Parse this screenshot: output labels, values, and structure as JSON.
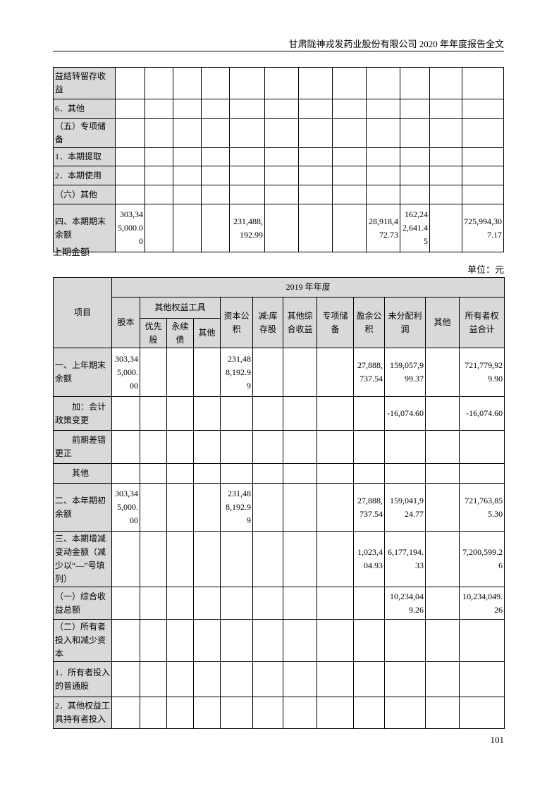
{
  "header": {
    "title": "甘肃陇神戎发药业股份有限公司 2020 年年度报告全文"
  },
  "table1": {
    "rows": [
      {
        "label": "益结转留存收益",
        "values": [
          "",
          "",
          "",
          "",
          "",
          "",
          "",
          "",
          "",
          "",
          "",
          ""
        ]
      },
      {
        "label": "6．其他",
        "values": [
          "",
          "",
          "",
          "",
          "",
          "",
          "",
          "",
          "",
          "",
          "",
          ""
        ]
      },
      {
        "label": "（五）专项储备",
        "values": [
          "",
          "",
          "",
          "",
          "",
          "",
          "",
          "",
          "",
          "",
          "",
          ""
        ]
      },
      {
        "label": "1．本期提取",
        "values": [
          "",
          "",
          "",
          "",
          "",
          "",
          "",
          "",
          "",
          "",
          "",
          ""
        ]
      },
      {
        "label": "2．本期使用",
        "values": [
          "",
          "",
          "",
          "",
          "",
          "",
          "",
          "",
          "",
          "",
          "",
          ""
        ]
      },
      {
        "label": "（六）其他",
        "values": [
          "",
          "",
          "",
          "",
          "",
          "",
          "",
          "",
          "",
          "",
          "",
          ""
        ]
      },
      {
        "label": "四、本期期末余额",
        "values": [
          "303,345,000.00",
          "",
          "",
          "",
          "231,488,192.99",
          "",
          "",
          "",
          "28,918,472.73",
          "162,242,641.45",
          "",
          "725,994,307.17"
        ]
      }
    ]
  },
  "section_label": "上期金额",
  "unit_label": "单位：元",
  "table2": {
    "header": {
      "item": "项目",
      "year": "2019 年年度",
      "share_capital": "股本",
      "other_equity": "其他权益工具",
      "preferred": "优先股",
      "perpetual": "永续债",
      "other_eq_other": "其他",
      "capital_reserve": "资本公积",
      "treasury": "减:库存股",
      "oci": "其他综合收益",
      "special_reserve": "专项储备",
      "surplus_reserve": "盈余公积",
      "undistributed": "未分配利润",
      "other": "其他",
      "total": "所有者权益合计"
    },
    "rows": [
      {
        "label": "一、上年期末余额",
        "values": [
          "303,345,000.00",
          "",
          "",
          "",
          "231,488,192.99",
          "",
          "",
          "",
          "27,888,737.54",
          "159,057,999.37",
          "",
          "721,779,929.90"
        ]
      },
      {
        "label": "加：会计政策变更",
        "indent": true,
        "values": [
          "",
          "",
          "",
          "",
          "",
          "",
          "",
          "",
          "",
          "-16,074.60",
          "",
          "-16,074.60"
        ]
      },
      {
        "label": "前期差错更正",
        "indent": true,
        "values": [
          "",
          "",
          "",
          "",
          "",
          "",
          "",
          "",
          "",
          "",
          "",
          ""
        ]
      },
      {
        "label": "其他",
        "indent": true,
        "values": [
          "",
          "",
          "",
          "",
          "",
          "",
          "",
          "",
          "",
          "",
          "",
          ""
        ]
      },
      {
        "label": "二、本年期初余额",
        "values": [
          "303,345,000.00",
          "",
          "",
          "",
          "231,488,192.99",
          "",
          "",
          "",
          "27,888,737.54",
          "159,041,924.77",
          "",
          "721,763,855.30"
        ]
      },
      {
        "label": "三、本期增减变动金额（减少以“—”号填列）",
        "values": [
          "",
          "",
          "",
          "",
          "",
          "",
          "",
          "",
          "1,023,404.93",
          "6,177,194.33",
          "",
          "7,200,599.26"
        ]
      },
      {
        "label": "（一）综合收益总额",
        "values": [
          "",
          "",
          "",
          "",
          "",
          "",
          "",
          "",
          "",
          "10,234,049.26",
          "",
          "10,234,049.26"
        ]
      },
      {
        "label": "（二）所有者投入和减少资本",
        "values": [
          "",
          "",
          "",
          "",
          "",
          "",
          "",
          "",
          "",
          "",
          "",
          ""
        ]
      },
      {
        "label": "1．所有者投入的普通股",
        "values": [
          "",
          "",
          "",
          "",
          "",
          "",
          "",
          "",
          "",
          "",
          "",
          ""
        ]
      },
      {
        "label": "2．其他权益工具持有者投入",
        "values": [
          "",
          "",
          "",
          "",
          "",
          "",
          "",
          "",
          "",
          "",
          "",
          ""
        ]
      }
    ]
  },
  "page_number": "101"
}
